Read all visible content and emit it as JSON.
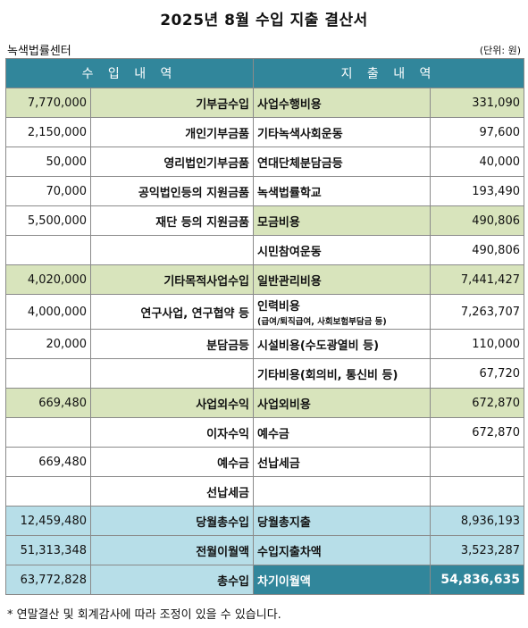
{
  "title": "2025년 8월 수입 지출 결산서",
  "org": "녹색법률센터",
  "unit": "(단위: 원)",
  "headers": {
    "income": "수 입 내 역",
    "expense": "지 출 내 역"
  },
  "rows": [
    {
      "type": "cat",
      "amount": "7,770,000",
      "income": "기부금수입",
      "expense": "사업수행비용",
      "exp_amount": "331,090"
    },
    {
      "type": "n",
      "amount": "2,150,000",
      "income": "개인기부금품",
      "expense": "기타녹색사회운동",
      "exp_amount": "97,600"
    },
    {
      "type": "n",
      "amount": "50,000",
      "income": "영리법인기부금품",
      "expense": "연대단체분담금등",
      "exp_amount": "40,000"
    },
    {
      "type": "n",
      "amount": "70,000",
      "income": "공익법인등의 지원금품",
      "expense": "녹색법률학교",
      "exp_amount": "193,490"
    },
    {
      "type": "n",
      "amount": "5,500,000",
      "income": "재단 등의 지원금품",
      "expense": "모금비용",
      "exp_amount": "490,806",
      "exp_cat": true
    },
    {
      "type": "n",
      "amount": "",
      "income": "",
      "expense": "시민참여운동",
      "exp_amount": "490,806"
    },
    {
      "type": "cat",
      "amount": "4,020,000",
      "income": "기타목적사업수입",
      "expense": "일반관리비용",
      "exp_amount": "7,441,427"
    },
    {
      "type": "tall",
      "amount": "4,000,000",
      "income": "연구사업, 연구협약 등",
      "expense": "인력비용",
      "expense_sub": "(급여/퇴직급여, 사회보험부담금 등)",
      "exp_amount": "7,263,707"
    },
    {
      "type": "n",
      "amount": "20,000",
      "income": "분담금등",
      "expense": "시설비용(수도광열비 등)",
      "exp_amount": "110,000"
    },
    {
      "type": "n",
      "amount": "",
      "income": "",
      "expense": "기타비용(회의비, 통신비 등)",
      "exp_amount": "67,720"
    },
    {
      "type": "cat",
      "amount": "669,480",
      "income": "사업외수익",
      "expense": "사업외비용",
      "exp_amount": "672,870"
    },
    {
      "type": "n",
      "amount": "",
      "income": "이자수익",
      "expense": "예수금",
      "exp_amount": "672,870"
    },
    {
      "type": "n",
      "amount": "669,480",
      "income": "예수금",
      "expense": "선납세금",
      "exp_amount": ""
    },
    {
      "type": "n",
      "amount": "",
      "income": "선납세금",
      "expense": "",
      "exp_amount": ""
    },
    {
      "type": "sum",
      "amount": "12,459,480",
      "income": "당월총수입",
      "expense": "당월총지출",
      "exp_amount": "8,936,193"
    },
    {
      "type": "sum",
      "amount": "51,313,348",
      "income": "전월이월액",
      "expense": "수입지출차액",
      "exp_amount": "3,523,287"
    },
    {
      "type": "tot",
      "amount": "63,772,828",
      "income": "총수입",
      "expense": "차기이월액",
      "exp_amount": "54,836,635"
    }
  ],
  "note": "* 연말결산 및 회계감사에 따라 조정이 있을 수 있습니다.",
  "colors": {
    "header": "#31869b",
    "category": "#d8e4bc",
    "summary": "#b7dee8"
  }
}
